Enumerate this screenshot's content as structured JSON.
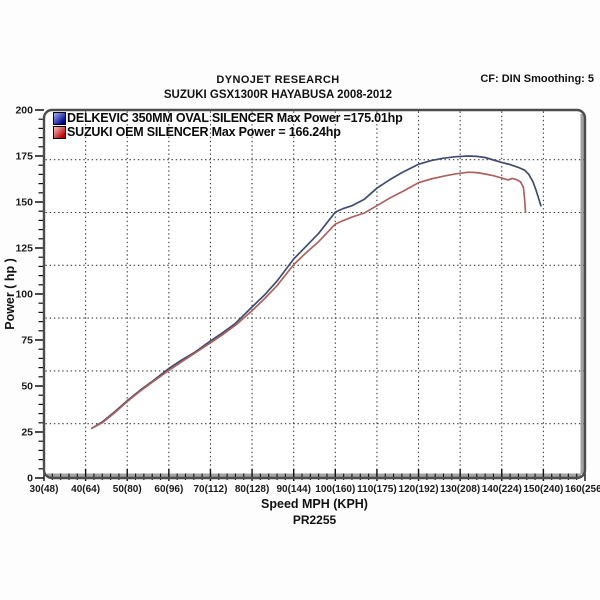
{
  "header": {
    "brand": "DYNOJET RESEARCH",
    "vehicle": "SUZUKI GSX1300R HAYABUSA 2008-2012",
    "correction_info": "CF: DIN  Smoothing: 5"
  },
  "legend": {
    "items": [
      {
        "label": "DELKEVIC 350MM OVAL SILENCER  Max Power =175.01hp",
        "marker_gradient": [
          "#9db1ff",
          "#00007d"
        ]
      },
      {
        "label": "SUZUKI OEM SILENCER Max Power = 166.24hp",
        "marker_gradient": [
          "#ffc4c4",
          "#b80000"
        ]
      }
    ]
  },
  "chart_data": {
    "type": "line",
    "title": "SUZUKI GSX1300R HAYABUSA 2008-2012",
    "subtitle": "DYNOJET RESEARCH",
    "xlabel": "Speed MPH (KPH)",
    "ylabel": "Power ( hp )",
    "footer_code": "PR2255",
    "xlim": [
      30,
      160
    ],
    "ylim": [
      0,
      200
    ],
    "x_tick_mph": [
      30,
      40,
      50,
      60,
      70,
      80,
      90,
      100,
      110,
      120,
      130,
      140,
      150,
      160
    ],
    "x_tick_labels": [
      "30(48)",
      "40(64)",
      "50(80)",
      "60(96)",
      "70(112)",
      "80(128)",
      "90(144)",
      "100(160)",
      "110(175)",
      "120(192)",
      "130(208)",
      "140(224)",
      "150(240)",
      "160(256)"
    ],
    "y_ticks": [
      0,
      25,
      50,
      75,
      100,
      125,
      150,
      175,
      200
    ],
    "x_minor_step": 2,
    "y_minor_step": 5,
    "v_gridlines_mph": [
      40,
      50,
      60,
      70,
      80,
      90,
      100,
      110,
      120,
      130,
      140,
      150
    ],
    "h_gridlines_hp": [
      173.0,
      144.3,
      115.6,
      86.9,
      58.2,
      29.5
    ],
    "grid_style": "dotted",
    "legend_position": "top-left-inside",
    "frame_color": "#4c4c4c",
    "grid_color": "#1a1a1a",
    "series": [
      {
        "name": "DELKEVIC 350MM OVAL SILENCER",
        "max_power_hp": 175.01,
        "max_power_label": "Max Power =175.01hp",
        "line_color": "#3f4d6e",
        "points": [
          [
            41.5,
            27
          ],
          [
            44,
            30.5
          ],
          [
            47,
            36
          ],
          [
            50,
            42
          ],
          [
            53,
            47.5
          ],
          [
            56,
            52.5
          ],
          [
            60,
            59.5
          ],
          [
            63,
            64
          ],
          [
            66,
            68
          ],
          [
            70,
            74.5
          ],
          [
            73,
            79
          ],
          [
            76,
            84
          ],
          [
            80,
            93
          ],
          [
            83,
            99.5
          ],
          [
            86,
            107
          ],
          [
            90,
            119
          ],
          [
            93,
            126
          ],
          [
            96,
            133
          ],
          [
            100,
            144.5
          ],
          [
            102,
            146.5
          ],
          [
            104,
            148
          ],
          [
            107,
            151.5
          ],
          [
            110,
            157.5
          ],
          [
            113,
            162
          ],
          [
            116,
            166
          ],
          [
            120,
            170.5
          ],
          [
            123,
            172.5
          ],
          [
            126,
            173.8
          ],
          [
            129,
            174.6
          ],
          [
            132,
            175
          ],
          [
            134,
            174.8
          ],
          [
            136,
            174.2
          ],
          [
            138,
            172.8
          ],
          [
            140,
            171.5
          ],
          [
            142,
            170.3
          ],
          [
            144,
            168.8
          ],
          [
            145.5,
            167.3
          ],
          [
            146.5,
            165
          ],
          [
            147.5,
            161
          ],
          [
            148.3,
            156
          ],
          [
            149,
            151
          ],
          [
            149.4,
            148
          ]
        ]
      },
      {
        "name": "SUZUKI OEM SILENCER",
        "max_power_hp": 166.24,
        "max_power_label": "Max Power = 166.24hp",
        "line_color": "#aa635e",
        "points": [
          [
            41.5,
            27
          ],
          [
            44,
            30
          ],
          [
            47,
            35.5
          ],
          [
            50,
            41.5
          ],
          [
            53,
            47
          ],
          [
            56,
            52
          ],
          [
            60,
            58.5
          ],
          [
            63,
            63
          ],
          [
            66,
            67.5
          ],
          [
            70,
            73.5
          ],
          [
            73,
            78
          ],
          [
            76,
            83
          ],
          [
            80,
            91
          ],
          [
            83,
            97.5
          ],
          [
            86,
            104.5
          ],
          [
            90,
            116
          ],
          [
            93,
            122.5
          ],
          [
            96,
            128.5
          ],
          [
            100,
            138
          ],
          [
            102,
            140
          ],
          [
            104,
            141.8
          ],
          [
            107,
            144
          ],
          [
            110,
            148
          ],
          [
            113,
            152
          ],
          [
            116,
            155.5
          ],
          [
            120,
            160.5
          ],
          [
            123,
            162.5
          ],
          [
            126,
            164
          ],
          [
            129,
            165.3
          ],
          [
            132,
            166.2
          ],
          [
            134,
            166
          ],
          [
            136,
            165.2
          ],
          [
            138,
            164.3
          ],
          [
            140,
            163
          ],
          [
            141.5,
            162
          ],
          [
            142.5,
            162.8
          ],
          [
            143.5,
            162.2
          ],
          [
            144.5,
            161
          ],
          [
            145.2,
            158
          ],
          [
            145.5,
            151
          ],
          [
            145.7,
            144.5
          ]
        ]
      }
    ]
  }
}
